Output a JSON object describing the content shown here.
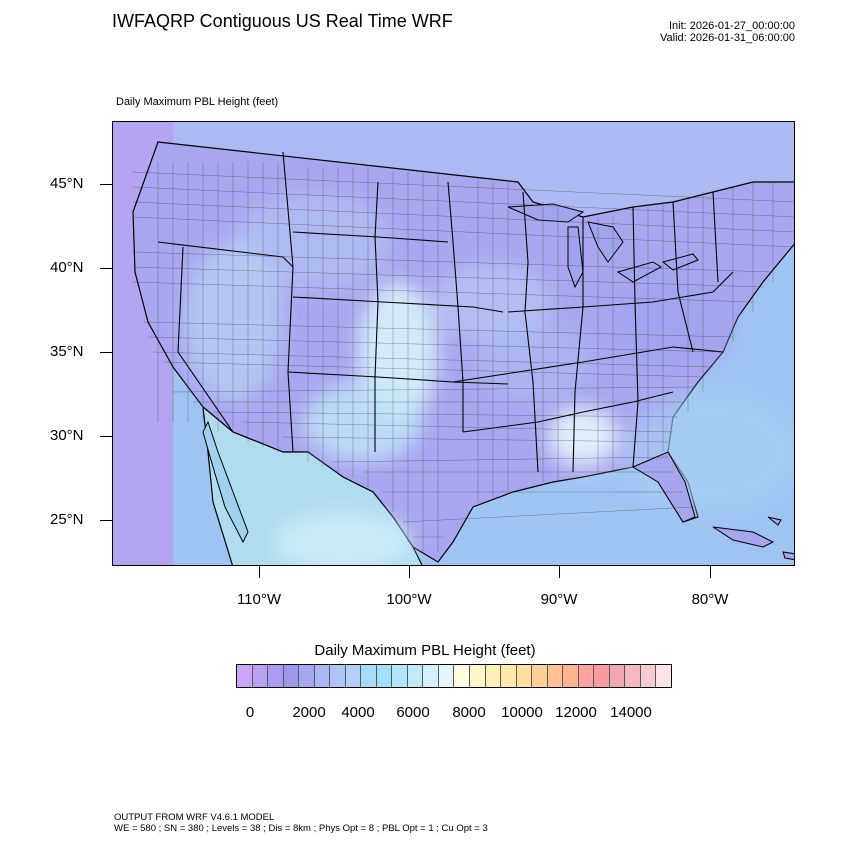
{
  "header": {
    "title": "IWFAQRP Contiguous US Real Time WRF",
    "init": "Init: 2026-01-27_00:00:00",
    "valid": "Valid: 2026-01-31_06:00:00"
  },
  "field_label": "Daily Maximum PBL Height   (feet)",
  "map": {
    "region": "Contiguous United States",
    "lat_labels": [
      "45°N",
      "40°N",
      "35°N",
      "30°N",
      "25°N"
    ],
    "lon_labels": [
      "110°W",
      "100°W",
      "90°W",
      "80°W"
    ],
    "ocean_color": "#9ec4f2",
    "land_base_color": "#a9a6f0"
  },
  "colorbar": {
    "title": "Daily Maximum PBL Height  (feet)",
    "tick_labels": [
      "0",
      "2000",
      "4000",
      "6000",
      "8000",
      "10000",
      "12000",
      "14000"
    ],
    "colors": [
      "#c8a8f5",
      "#b9a0f2",
      "#ab9af0",
      "#9f99ee",
      "#a3a9f0",
      "#a9b8f2",
      "#aec4f4",
      "#b3d0f6",
      "#a6dcf8",
      "#9fe2fa",
      "#b0e6f9",
      "#c2ebfa",
      "#d3f0fb",
      "#e4f5fc",
      "#fffde0",
      "#fff7c8",
      "#fff0b8",
      "#ffe8a8",
      "#ffde9e",
      "#ffd096",
      "#ffc290",
      "#ffb48c",
      "#ffa2a0",
      "#f89aa0",
      "#f0a8b0",
      "#f4b8c2",
      "#f8cad2",
      "#fde2e6"
    ]
  },
  "footer": {
    "line1": "OUTPUT FROM WRF V4.6.1 MODEL",
    "line2": "WE = 580 ; SN = 380 ; Levels = 38 ; Dis = 8km ; Phys Opt = 8 ; PBL Opt = 1 ; Cu Opt = 3"
  }
}
